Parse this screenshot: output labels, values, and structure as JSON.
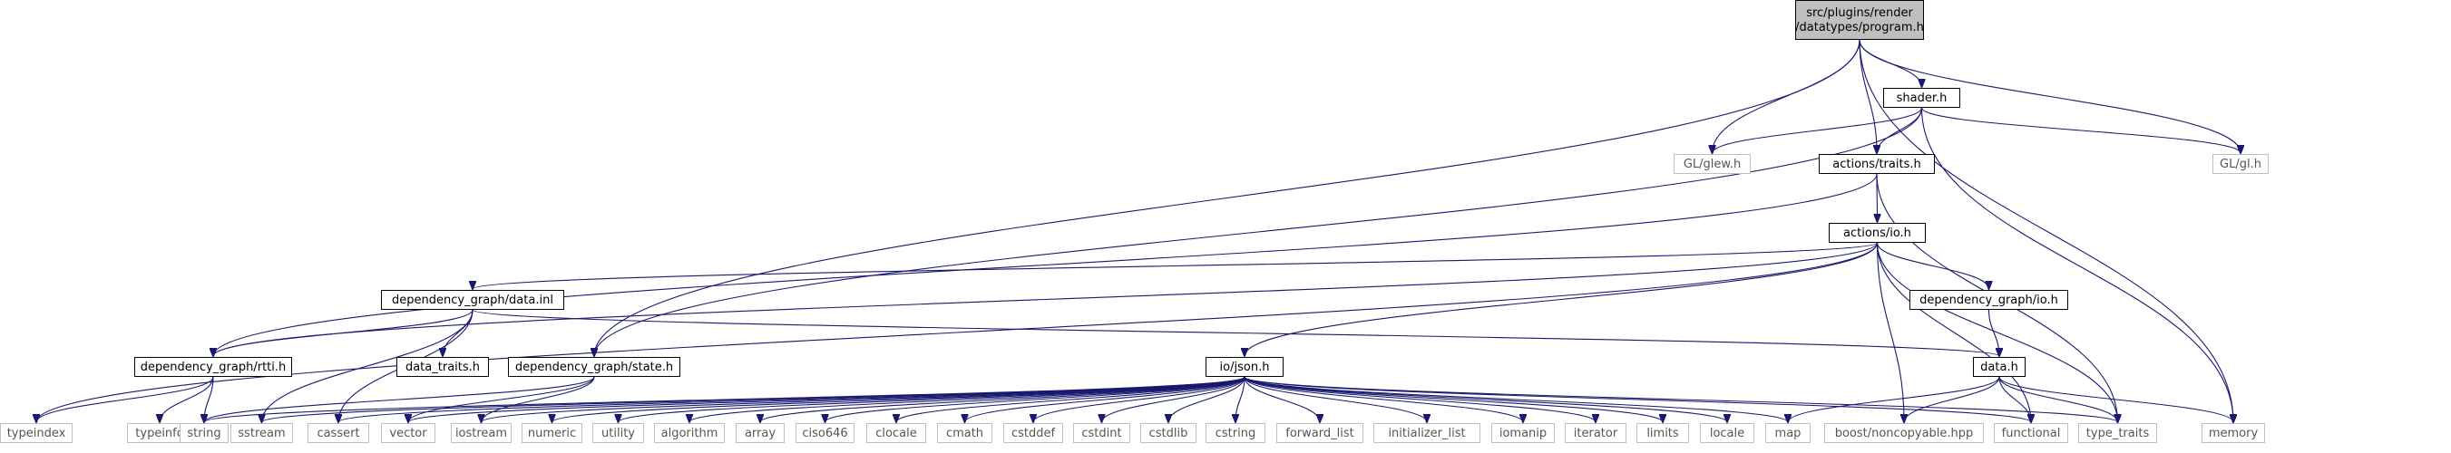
{
  "colors": {
    "edge": "#191970",
    "root_fill": "#bfbfbf",
    "node_border": "#000000",
    "external_border": "#bfbfbf",
    "background": "#ffffff"
  },
  "nodes": [
    {
      "id": "program_h",
      "lines": [
        "src/plugins/render",
        "/datatypes/program.h"
      ],
      "kind": "root"
    },
    {
      "id": "shader_h",
      "lines": [
        "shader.h"
      ],
      "kind": "internal"
    },
    {
      "id": "gl_glew_h",
      "lines": [
        "GL/glew.h"
      ],
      "kind": "external"
    },
    {
      "id": "actions_traits_h",
      "lines": [
        "actions/traits.h"
      ],
      "kind": "internal"
    },
    {
      "id": "gl_gl_h",
      "lines": [
        "GL/gl.h"
      ],
      "kind": "external"
    },
    {
      "id": "actions_io_h",
      "lines": [
        "actions/io.h"
      ],
      "kind": "internal"
    },
    {
      "id": "dg_data_inl",
      "lines": [
        "dependency_graph/data.inl"
      ],
      "kind": "internal"
    },
    {
      "id": "dg_io_h",
      "lines": [
        "dependency_graph/io.h"
      ],
      "kind": "internal"
    },
    {
      "id": "dg_rtti_h",
      "lines": [
        "dependency_graph/rtti.h"
      ],
      "kind": "internal"
    },
    {
      "id": "data_traits_h",
      "lines": [
        "data_traits.h"
      ],
      "kind": "internal"
    },
    {
      "id": "dg_state_h",
      "lines": [
        "dependency_graph/state.h"
      ],
      "kind": "internal"
    },
    {
      "id": "io_json_h",
      "lines": [
        "io/json.h"
      ],
      "kind": "internal"
    },
    {
      "id": "data_h",
      "lines": [
        "data.h"
      ],
      "kind": "internal"
    },
    {
      "id": "typeindex",
      "lines": [
        "typeindex"
      ],
      "kind": "external"
    },
    {
      "id": "typeinfo",
      "lines": [
        "typeinfo"
      ],
      "kind": "external"
    },
    {
      "id": "string",
      "lines": [
        "string"
      ],
      "kind": "external"
    },
    {
      "id": "sstream",
      "lines": [
        "sstream"
      ],
      "kind": "external"
    },
    {
      "id": "cassert",
      "lines": [
        "cassert"
      ],
      "kind": "external"
    },
    {
      "id": "vector",
      "lines": [
        "vector"
      ],
      "kind": "external"
    },
    {
      "id": "iostream",
      "lines": [
        "iostream"
      ],
      "kind": "external"
    },
    {
      "id": "numeric",
      "lines": [
        "numeric"
      ],
      "kind": "external"
    },
    {
      "id": "utility",
      "lines": [
        "utility"
      ],
      "kind": "external"
    },
    {
      "id": "algorithm",
      "lines": [
        "algorithm"
      ],
      "kind": "external"
    },
    {
      "id": "array",
      "lines": [
        "array"
      ],
      "kind": "external"
    },
    {
      "id": "ciso646",
      "lines": [
        "ciso646"
      ],
      "kind": "external"
    },
    {
      "id": "clocale",
      "lines": [
        "clocale"
      ],
      "kind": "external"
    },
    {
      "id": "cmath",
      "lines": [
        "cmath"
      ],
      "kind": "external"
    },
    {
      "id": "cstddef",
      "lines": [
        "cstddef"
      ],
      "kind": "external"
    },
    {
      "id": "cstdint",
      "lines": [
        "cstdint"
      ],
      "kind": "external"
    },
    {
      "id": "cstdlib",
      "lines": [
        "cstdlib"
      ],
      "kind": "external"
    },
    {
      "id": "cstring",
      "lines": [
        "cstring"
      ],
      "kind": "external"
    },
    {
      "id": "forward_list",
      "lines": [
        "forward_list"
      ],
      "kind": "external"
    },
    {
      "id": "initializer_list",
      "lines": [
        "initializer_list"
      ],
      "kind": "external"
    },
    {
      "id": "iomanip",
      "lines": [
        "iomanip"
      ],
      "kind": "external"
    },
    {
      "id": "iterator",
      "lines": [
        "iterator"
      ],
      "kind": "external"
    },
    {
      "id": "limits",
      "lines": [
        "limits"
      ],
      "kind": "external"
    },
    {
      "id": "locale",
      "lines": [
        "locale"
      ],
      "kind": "external"
    },
    {
      "id": "map",
      "lines": [
        "map"
      ],
      "kind": "external"
    },
    {
      "id": "boost_noncopyable",
      "lines": [
        "boost/noncopyable.hpp"
      ],
      "kind": "external"
    },
    {
      "id": "functional",
      "lines": [
        "functional"
      ],
      "kind": "external"
    },
    {
      "id": "type_traits",
      "lines": [
        "type_traits"
      ],
      "kind": "external"
    },
    {
      "id": "memory",
      "lines": [
        "memory"
      ],
      "kind": "external"
    }
  ],
  "edges": [
    [
      "program_h",
      "shader_h"
    ],
    [
      "program_h",
      "gl_glew_h"
    ],
    [
      "program_h",
      "actions_traits_h"
    ],
    [
      "program_h",
      "gl_gl_h"
    ],
    [
      "program_h",
      "memory"
    ],
    [
      "program_h",
      "dg_state_h"
    ],
    [
      "shader_h",
      "gl_glew_h"
    ],
    [
      "shader_h",
      "actions_traits_h"
    ],
    [
      "shader_h",
      "gl_gl_h"
    ],
    [
      "shader_h",
      "memory"
    ],
    [
      "shader_h",
      "dg_state_h"
    ],
    [
      "actions_traits_h",
      "actions_io_h"
    ],
    [
      "actions_traits_h",
      "dg_rtti_h"
    ],
    [
      "actions_traits_h",
      "type_traits"
    ],
    [
      "actions_io_h",
      "dg_data_inl"
    ],
    [
      "actions_io_h",
      "dg_io_h"
    ],
    [
      "actions_io_h",
      "io_json_h"
    ],
    [
      "actions_io_h",
      "dg_rtti_h"
    ],
    [
      "actions_io_h",
      "typeindex"
    ],
    [
      "actions_io_h",
      "boost_noncopyable"
    ],
    [
      "actions_io_h",
      "functional"
    ],
    [
      "actions_io_h",
      "type_traits"
    ],
    [
      "dg_data_inl",
      "dg_rtti_h"
    ],
    [
      "dg_data_inl",
      "data_traits_h"
    ],
    [
      "dg_data_inl",
      "sstream"
    ],
    [
      "dg_data_inl",
      "cassert"
    ],
    [
      "dg_data_inl",
      "data_h"
    ],
    [
      "dg_io_h",
      "data_h"
    ],
    [
      "dg_rtti_h",
      "typeindex"
    ],
    [
      "dg_rtti_h",
      "typeinfo"
    ],
    [
      "dg_rtti_h",
      "string"
    ],
    [
      "dg_state_h",
      "string"
    ],
    [
      "dg_state_h",
      "vector"
    ],
    [
      "dg_state_h",
      "iostream"
    ],
    [
      "io_json_h",
      "string"
    ],
    [
      "io_json_h",
      "sstream"
    ],
    [
      "io_json_h",
      "cassert"
    ],
    [
      "io_json_h",
      "vector"
    ],
    [
      "io_json_h",
      "iostream"
    ],
    [
      "io_json_h",
      "numeric"
    ],
    [
      "io_json_h",
      "utility"
    ],
    [
      "io_json_h",
      "algorithm"
    ],
    [
      "io_json_h",
      "array"
    ],
    [
      "io_json_h",
      "ciso646"
    ],
    [
      "io_json_h",
      "clocale"
    ],
    [
      "io_json_h",
      "cmath"
    ],
    [
      "io_json_h",
      "cstddef"
    ],
    [
      "io_json_h",
      "cstdint"
    ],
    [
      "io_json_h",
      "cstdlib"
    ],
    [
      "io_json_h",
      "cstring"
    ],
    [
      "io_json_h",
      "forward_list"
    ],
    [
      "io_json_h",
      "initializer_list"
    ],
    [
      "io_json_h",
      "iomanip"
    ],
    [
      "io_json_h",
      "iterator"
    ],
    [
      "io_json_h",
      "limits"
    ],
    [
      "io_json_h",
      "locale"
    ],
    [
      "io_json_h",
      "map"
    ],
    [
      "io_json_h",
      "functional"
    ],
    [
      "io_json_h",
      "type_traits"
    ],
    [
      "data_h",
      "map"
    ],
    [
      "data_h",
      "boost_noncopyable"
    ],
    [
      "data_h",
      "functional"
    ],
    [
      "data_h",
      "type_traits"
    ],
    [
      "data_h",
      "memory"
    ]
  ]
}
